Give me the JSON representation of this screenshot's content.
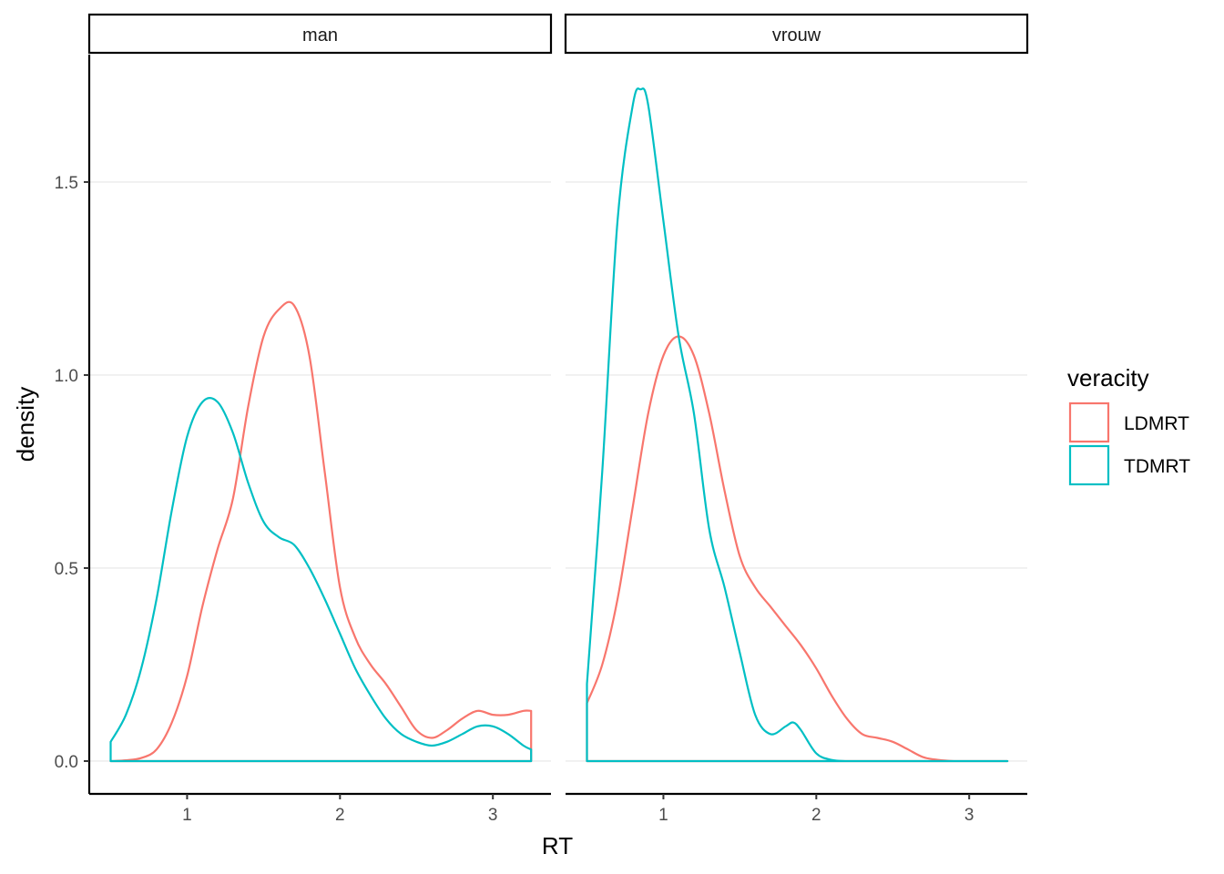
{
  "chart_data": {
    "type": "area",
    "xlabel": "RT",
    "ylabel": "density",
    "ylim": [
      -0.085,
      1.83
    ],
    "x_ticks": [
      1,
      2,
      3
    ],
    "y_ticks": [
      "0.0",
      "0.5",
      "1.0",
      "1.5"
    ],
    "y_tick_values": [
      0,
      0.5,
      1.0,
      1.5
    ],
    "grid": "horizontal major lines",
    "legend": {
      "title": "veracity",
      "position": "right",
      "entries": [
        "LDMRT",
        "TDMRT"
      ]
    },
    "colors": {
      "LDMRT": "#F8766D",
      "TDMRT": "#00BFC4"
    },
    "panels": [
      {
        "strip": "man",
        "xlim": [
          0.36,
          3.38
        ],
        "series": [
          {
            "name": "LDMRT",
            "x": [
              0.5,
              0.6,
              0.7,
              0.8,
              0.9,
              1.0,
              1.1,
              1.2,
              1.3,
              1.4,
              1.5,
              1.6,
              1.7,
              1.8,
              1.9,
              2.0,
              2.1,
              2.2,
              2.3,
              2.4,
              2.5,
              2.6,
              2.7,
              2.8,
              2.9,
              3.0,
              3.1,
              3.2,
              3.25
            ],
            "y": [
              0.0,
              0.002,
              0.008,
              0.03,
              0.1,
              0.22,
              0.4,
              0.55,
              0.68,
              0.92,
              1.1,
              1.17,
              1.18,
              1.05,
              0.75,
              0.45,
              0.32,
              0.25,
              0.2,
              0.14,
              0.08,
              0.06,
              0.08,
              0.11,
              0.13,
              0.12,
              0.12,
              0.13,
              0.13
            ]
          },
          {
            "name": "TDMRT",
            "x": [
              0.5,
              0.6,
              0.7,
              0.8,
              0.9,
              1.0,
              1.1,
              1.2,
              1.3,
              1.4,
              1.5,
              1.6,
              1.7,
              1.8,
              1.9,
              2.0,
              2.1,
              2.2,
              2.3,
              2.4,
              2.5,
              2.6,
              2.7,
              2.8,
              2.9,
              3.0,
              3.1,
              3.2,
              3.25
            ],
            "y": [
              0.05,
              0.12,
              0.24,
              0.42,
              0.65,
              0.84,
              0.93,
              0.93,
              0.85,
              0.72,
              0.62,
              0.58,
              0.56,
              0.5,
              0.42,
              0.33,
              0.24,
              0.17,
              0.11,
              0.07,
              0.05,
              0.04,
              0.05,
              0.07,
              0.09,
              0.09,
              0.07,
              0.04,
              0.03
            ]
          }
        ]
      },
      {
        "strip": "vrouw",
        "xlim": [
          0.36,
          3.38
        ],
        "series": [
          {
            "name": "LDMRT",
            "x": [
              0.5,
              0.6,
              0.7,
              0.8,
              0.9,
              1.0,
              1.1,
              1.2,
              1.3,
              1.4,
              1.5,
              1.6,
              1.7,
              1.8,
              1.9,
              2.0,
              2.1,
              2.2,
              2.3,
              2.4,
              2.5,
              2.6,
              2.7,
              2.8,
              2.9,
              3.0,
              3.1,
              3.2,
              3.25
            ],
            "y": [
              0.15,
              0.25,
              0.42,
              0.66,
              0.9,
              1.05,
              1.1,
              1.05,
              0.9,
              0.7,
              0.53,
              0.45,
              0.4,
              0.35,
              0.3,
              0.24,
              0.17,
              0.11,
              0.07,
              0.06,
              0.05,
              0.03,
              0.01,
              0.003,
              0.0,
              0.0,
              0.0,
              0.0,
              0.0
            ]
          },
          {
            "name": "TDMRT",
            "x": [
              0.5,
              0.6,
              0.7,
              0.8,
              0.85,
              0.9,
              1.0,
              1.1,
              1.2,
              1.3,
              1.4,
              1.5,
              1.6,
              1.7,
              1.8,
              1.85,
              1.9,
              2.0,
              2.1,
              2.2,
              2.3,
              2.5,
              2.7,
              3.0,
              3.25
            ],
            "y": [
              0.2,
              0.75,
              1.4,
              1.7,
              1.74,
              1.7,
              1.4,
              1.1,
              0.9,
              0.6,
              0.45,
              0.28,
              0.12,
              0.07,
              0.09,
              0.1,
              0.08,
              0.02,
              0.003,
              0.0,
              0.0,
              0.0,
              0.0,
              0.0,
              0.0
            ]
          }
        ]
      }
    ]
  }
}
